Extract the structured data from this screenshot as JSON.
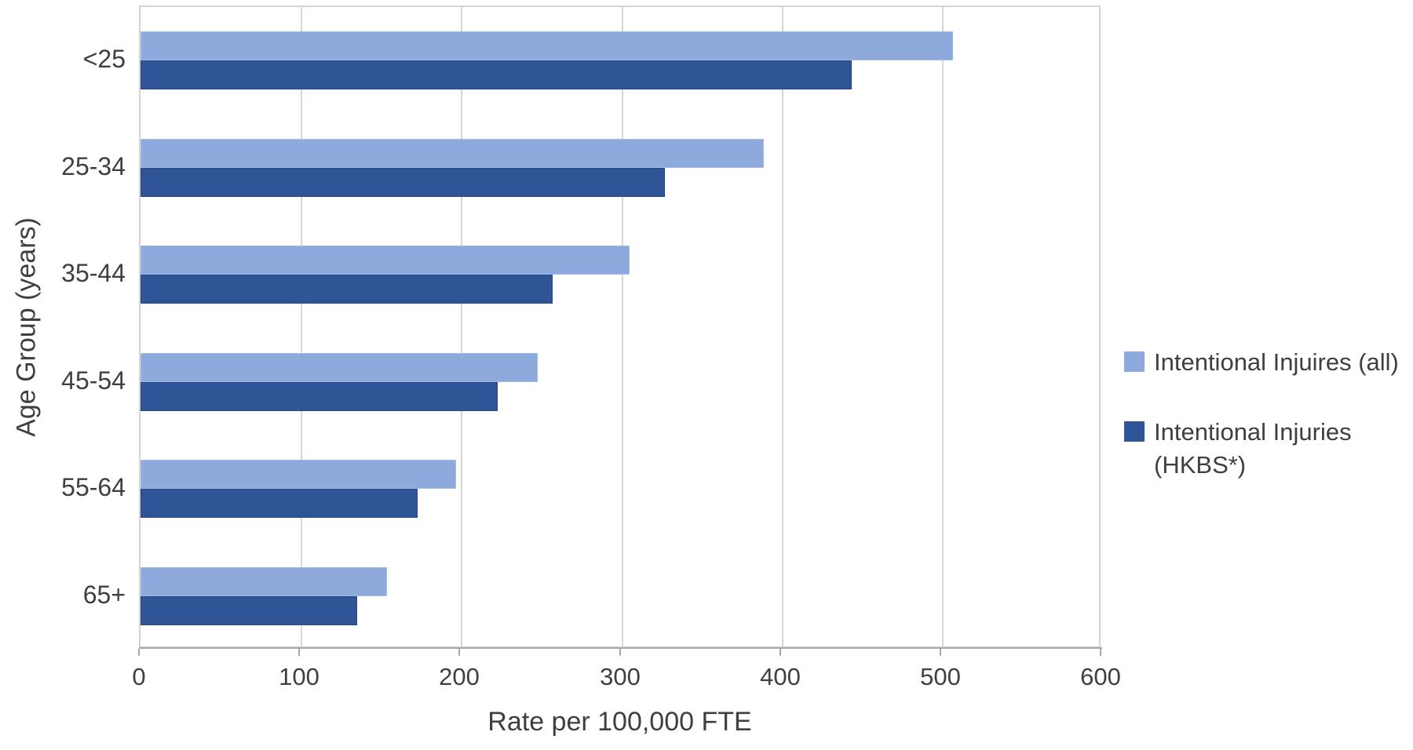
{
  "chart_data": {
    "type": "bar",
    "orientation": "horizontal",
    "title": "",
    "xlabel": "Rate per 100,000 FTE",
    "ylabel": "Age Group (years)",
    "categories": [
      "<25",
      "25-34",
      "35-44",
      "45-54",
      "55-64",
      "65+"
    ],
    "series": [
      {
        "name": "Intentional Injuires (all)",
        "color": "#8ea9db",
        "values": [
          507,
          389,
          305,
          248,
          197,
          154
        ]
      },
      {
        "name": "Intentional Injuries (HKBS*)",
        "color": "#2f5597",
        "values": [
          444,
          327,
          257,
          223,
          173,
          135
        ]
      }
    ],
    "xlim": [
      0,
      600
    ],
    "xticks": [
      0,
      100,
      200,
      300,
      400,
      500,
      600
    ],
    "grid": true,
    "gridline_color": "#d6d6d6",
    "axis_line_color": "#a8a8a8",
    "text_color": "#3f3f3f",
    "legend_position": "right"
  }
}
